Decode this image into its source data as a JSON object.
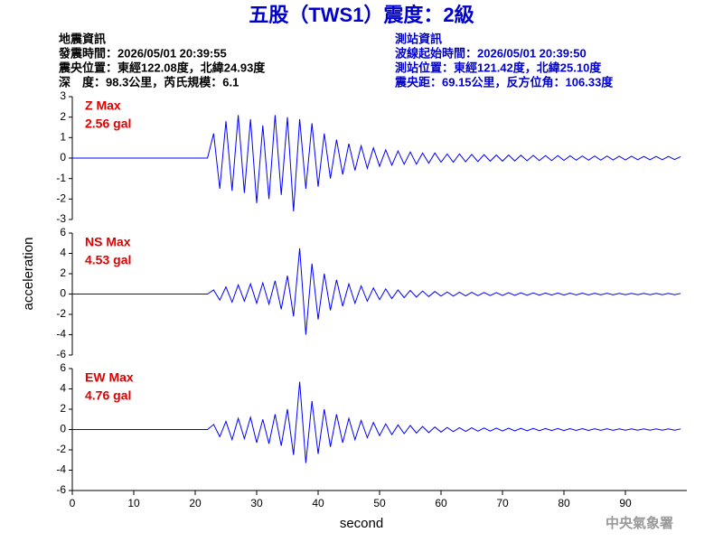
{
  "title": "五股（TWS1）震度：2級",
  "info_left": [
    "地震資訊",
    "發震時間：2026/05/01 20:39:55",
    "震央位置：東經122.08度，北緯24.93度",
    "深　度：98.3公里，芮氏規模：6.1"
  ],
  "info_right": [
    "測站資訊",
    "波線起始時間：2026/05/01 20:39:50",
    "測站位置：東經121.42度，北緯25.10度",
    "震央距：69.15公里，反方位角：106.33度"
  ],
  "xlabel": "second",
  "ylabel": "acceleration",
  "credit": "中央氣象署",
  "chart_data": [
    {
      "type": "line",
      "annotation": [
        "Z Max",
        "2.56 gal"
      ],
      "annotation_color": "#e00000",
      "color": "#0000ff",
      "xlim": [
        0,
        100
      ],
      "ylim": [
        -3,
        3
      ],
      "yticks": [
        -3,
        -2,
        -1,
        0,
        1,
        2,
        3
      ],
      "x": [
        0,
        22,
        23,
        24,
        25,
        26,
        27,
        28,
        29,
        30,
        31,
        32,
        33,
        34,
        35,
        36,
        37,
        38,
        39,
        40,
        41,
        42,
        43,
        44,
        45,
        46,
        47,
        48,
        49,
        50,
        51,
        52,
        53,
        54,
        55,
        56,
        57,
        58,
        59,
        60,
        61,
        62,
        63,
        64,
        65,
        66,
        67,
        68,
        69,
        70,
        71,
        72,
        73,
        74,
        75,
        76,
        77,
        78,
        79,
        80,
        81,
        82,
        83,
        84,
        85,
        86,
        87,
        88,
        89,
        90,
        91,
        92,
        93,
        94,
        95,
        96,
        97,
        98,
        99
      ],
      "values": [
        0,
        0,
        1.2,
        -1.5,
        1.8,
        -1.6,
        2.1,
        -1.7,
        1.9,
        -2.2,
        1.6,
        -2.0,
        2.1,
        -1.8,
        2.0,
        -2.6,
        1.9,
        -1.5,
        1.7,
        -1.4,
        1.2,
        -1.0,
        0.9,
        -0.8,
        0.7,
        -0.6,
        0.6,
        -0.5,
        0.5,
        -0.4,
        0.4,
        -0.35,
        0.35,
        -0.3,
        0.3,
        -0.3,
        0.25,
        -0.25,
        0.25,
        -0.2,
        0.2,
        -0.2,
        0.2,
        -0.18,
        0.18,
        -0.17,
        0.17,
        -0.15,
        0.15,
        -0.15,
        0.15,
        -0.14,
        0.14,
        -0.13,
        0.13,
        -0.12,
        0.12,
        -0.12,
        0.12,
        -0.11,
        0.11,
        -0.1,
        0.1,
        -0.1,
        0.1,
        -0.1,
        0.1,
        -0.09,
        0.09,
        -0.09,
        0.09,
        -0.08,
        0.08,
        -0.08,
        0.08,
        -0.08,
        0.08,
        -0.07,
        0.07
      ]
    },
    {
      "type": "line",
      "annotation": [
        "NS Max",
        "4.53 gal"
      ],
      "annotation_color": "#e00000",
      "color": "#0000ff",
      "xlim": [
        0,
        100
      ],
      "ylim": [
        -6,
        6
      ],
      "yticks": [
        -6,
        -4,
        -2,
        0,
        2,
        4,
        6
      ],
      "x": [
        0,
        22,
        23,
        24,
        25,
        26,
        27,
        28,
        29,
        30,
        31,
        32,
        33,
        34,
        35,
        36,
        37,
        38,
        39,
        40,
        41,
        42,
        43,
        44,
        45,
        46,
        47,
        48,
        49,
        50,
        51,
        52,
        53,
        54,
        55,
        56,
        57,
        58,
        59,
        60,
        61,
        62,
        63,
        64,
        65,
        66,
        67,
        68,
        69,
        70,
        71,
        72,
        73,
        74,
        75,
        76,
        77,
        78,
        79,
        80,
        81,
        82,
        83,
        84,
        85,
        86,
        87,
        88,
        89,
        90,
        91,
        92,
        93,
        94,
        95,
        96,
        97,
        98,
        99
      ],
      "values": [
        0,
        0,
        0.4,
        -0.6,
        0.7,
        -0.8,
        0.9,
        -0.7,
        1.0,
        -0.9,
        1.1,
        -1.0,
        1.3,
        -1.5,
        1.8,
        -2.2,
        4.5,
        -4.0,
        3.0,
        -2.5,
        2.0,
        -1.6,
        1.4,
        -1.2,
        1.0,
        -0.9,
        0.8,
        -0.7,
        0.6,
        -0.55,
        0.5,
        -0.45,
        0.4,
        -0.35,
        0.35,
        -0.3,
        0.3,
        -0.25,
        0.25,
        -0.2,
        0.2,
        -0.2,
        0.18,
        -0.18,
        0.17,
        -0.16,
        0.15,
        -0.15,
        0.14,
        -0.14,
        0.13,
        -0.13,
        0.12,
        -0.12,
        0.11,
        -0.11,
        0.1,
        -0.1,
        0.1,
        -0.1,
        0.09,
        -0.09,
        0.09,
        -0.09,
        0.08,
        -0.08,
        0.08,
        -0.08,
        0.07,
        -0.07,
        0.07,
        -0.07,
        0.07,
        -0.06,
        0.06,
        -0.06,
        0.06,
        -0.06,
        0.06
      ]
    },
    {
      "type": "line",
      "annotation": [
        "EW Max",
        "4.76 gal"
      ],
      "annotation_color": "#e00000",
      "color": "#0000ff",
      "xlim": [
        0,
        100
      ],
      "ylim": [
        -6,
        6
      ],
      "yticks": [
        -6,
        -4,
        -2,
        0,
        2,
        4,
        6
      ],
      "xticks": [
        0,
        10,
        20,
        30,
        40,
        50,
        60,
        70,
        80,
        90
      ],
      "x": [
        0,
        22,
        23,
        24,
        25,
        26,
        27,
        28,
        29,
        30,
        31,
        32,
        33,
        34,
        35,
        36,
        37,
        38,
        39,
        40,
        41,
        42,
        43,
        44,
        45,
        46,
        47,
        48,
        49,
        50,
        51,
        52,
        53,
        54,
        55,
        56,
        57,
        58,
        59,
        60,
        61,
        62,
        63,
        64,
        65,
        66,
        67,
        68,
        69,
        70,
        71,
        72,
        73,
        74,
        75,
        76,
        77,
        78,
        79,
        80,
        81,
        82,
        83,
        84,
        85,
        86,
        87,
        88,
        89,
        90,
        91,
        92,
        93,
        94,
        95,
        96,
        97,
        98,
        99
      ],
      "values": [
        0,
        0,
        0.5,
        -0.7,
        0.8,
        -1.0,
        1.1,
        -0.9,
        1.2,
        -1.3,
        1.0,
        -1.4,
        1.5,
        -1.6,
        2.0,
        -2.5,
        4.7,
        -3.3,
        2.8,
        -2.4,
        2.0,
        -1.7,
        1.5,
        -1.3,
        1.1,
        -1.0,
        0.9,
        -0.8,
        0.7,
        -0.6,
        0.55,
        -0.5,
        0.45,
        -0.4,
        0.4,
        -0.35,
        0.3,
        -0.3,
        0.25,
        -0.25,
        0.2,
        -0.2,
        0.18,
        -0.18,
        0.17,
        -0.16,
        0.15,
        -0.15,
        0.14,
        -0.14,
        0.13,
        -0.13,
        0.12,
        -0.12,
        0.11,
        -0.11,
        0.1,
        -0.1,
        0.1,
        -0.1,
        0.09,
        -0.09,
        0.09,
        -0.09,
        0.08,
        -0.08,
        0.08,
        -0.08,
        0.07,
        -0.07,
        0.07,
        -0.07,
        0.07,
        -0.06,
        0.06,
        -0.06,
        0.06,
        -0.06,
        0.06
      ]
    }
  ]
}
